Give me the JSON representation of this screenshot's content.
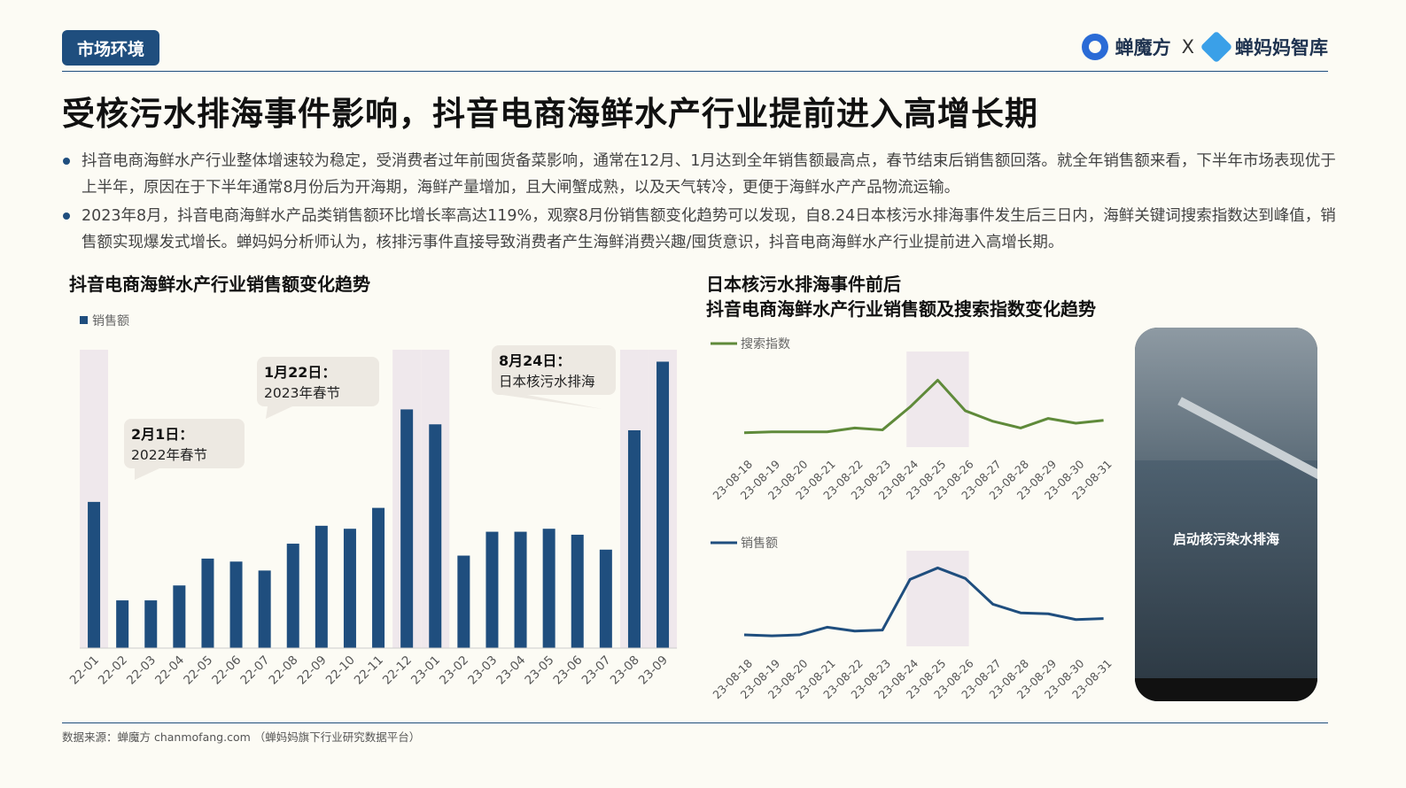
{
  "header": {
    "tag": "市场环境",
    "brand_left": "蝉魔方",
    "brand_sep": "X",
    "brand_right": "蝉妈妈智库",
    "title": "受核污水排海事件影响，抖音电商海鲜水产行业提前进入高增长期"
  },
  "bullets": [
    "抖音电商海鲜水产行业整体增速较为稳定，受消费者过年前囤货备菜影响，通常在12月、1月达到全年销售额最高点，春节结束后销售额回落。就全年销售额来看，下半年市场表现优于上半年，原因在于下半年通常8月份后为开海期，海鲜产量增加，且大闸蟹成熟，以及天气转冷，更便于海鲜水产产品物流运输。",
    "2023年8月，抖音电商海鲜水产品类销售额环比增长率高达119%，观察8月份销售额变化趋势可以发现，自8.24日本核污水排海事件发生后三日内，海鲜关键词搜索指数达到峰值，销售额实现爆发式增长。蝉妈妈分析师认为，核排污事件直接导致消费者产生海鲜消费兴趣/囤货意识，抖音电商海鲜水产行业提前进入高增长期。"
  ],
  "left_chart_title": "抖音电商海鲜水产行业销售额变化趋势",
  "right_chart_title_1": "日本核污水排海事件前后",
  "right_chart_title_2": "抖音电商海鲜水产行业销售额及搜索指数变化趋势",
  "phone_caption": "启动核污染水排海",
  "source": "数据来源：蝉魔方 chanmofang.com （蝉妈妈旗下行业研究数据平台）",
  "colors": {
    "navy": "#1f4e7e",
    "green": "#5f8a3a",
    "highlight": "#efe8ec",
    "callout": "#ede9e2"
  },
  "chart_data": [
    {
      "type": "bar",
      "legend": "销售额",
      "categories": [
        "22-01",
        "22-02",
        "22-03",
        "22-04",
        "22-05",
        "22-06",
        "22-07",
        "22-08",
        "22-09",
        "22-10",
        "22-11",
        "22-12",
        "23-01",
        "23-02",
        "23-03",
        "23-04",
        "23-05",
        "23-06",
        "23-07",
        "23-08",
        "23-09"
      ],
      "series": [
        {
          "name": "销售额",
          "values": [
            49,
            16,
            16,
            21,
            30,
            29,
            26,
            35,
            41,
            40,
            47,
            80,
            75,
            31,
            39,
            39,
            40,
            38,
            33,
            73,
            96
          ]
        }
      ],
      "ylim": [
        0,
        100
      ],
      "highlight_categories": [
        "22-01",
        "22-12",
        "23-01",
        "23-08",
        "23-09"
      ],
      "annotations": [
        {
          "at": "22-02",
          "title": "2月1日：",
          "text": "2022年春节"
        },
        {
          "at": "23-01",
          "title": "1月22日：",
          "text": "2023年春节"
        },
        {
          "at": "23-08",
          "title": "8月24日：",
          "text": "日本核污水排海"
        }
      ]
    },
    {
      "type": "line",
      "legend": "搜索指数",
      "x": [
        "23-08-18",
        "23-08-19",
        "23-08-20",
        "23-08-21",
        "23-08-22",
        "23-08-23",
        "23-08-24",
        "23-08-25",
        "23-08-26",
        "23-08-27",
        "23-08-28",
        "23-08-29",
        "23-08-30",
        "23-08-31"
      ],
      "series": [
        {
          "name": "搜索指数",
          "values": [
            15,
            16,
            16,
            16,
            20,
            18,
            42,
            70,
            38,
            27,
            20,
            30,
            25,
            28
          ]
        }
      ],
      "ylim": [
        0,
        100
      ],
      "highlight_x": [
        "23-08-24",
        "23-08-25",
        "23-08-26"
      ]
    },
    {
      "type": "line",
      "legend": "销售额",
      "x": [
        "23-08-18",
        "23-08-19",
        "23-08-20",
        "23-08-21",
        "23-08-22",
        "23-08-23",
        "23-08-24",
        "23-08-25",
        "23-08-26",
        "23-08-27",
        "23-08-28",
        "23-08-29",
        "23-08-30",
        "23-08-31"
      ],
      "series": [
        {
          "name": "销售额",
          "values": [
            12,
            11,
            12,
            20,
            16,
            17,
            70,
            82,
            71,
            44,
            35,
            34,
            28,
            29
          ]
        }
      ],
      "ylim": [
        0,
        100
      ],
      "highlight_x": [
        "23-08-24",
        "23-08-25",
        "23-08-26"
      ]
    }
  ]
}
